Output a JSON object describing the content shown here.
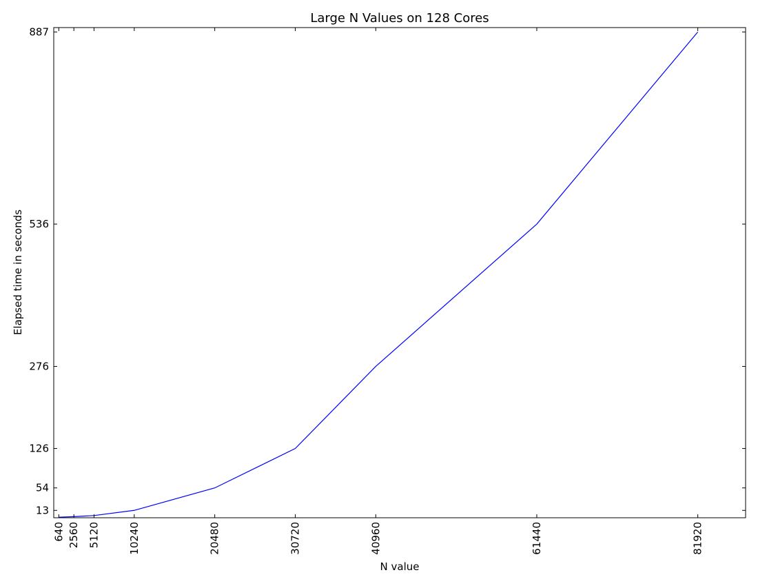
{
  "chart_data": {
    "type": "line",
    "title": "Large N Values on 128 Cores",
    "xlabel": "N value",
    "ylabel": "Elapsed time in seconds",
    "xlim": [
      0,
      88000
    ],
    "ylim": [
      -0.5,
      895
    ],
    "xticks": [
      640,
      2560,
      5120,
      10240,
      20480,
      30720,
      40960,
      61440,
      81920
    ],
    "yticks": [
      13,
      54,
      126,
      276,
      536,
      887
    ],
    "grid": false,
    "series": [
      {
        "color": "#0000ff",
        "x": [
          640,
          2560,
          5120,
          10240,
          20480,
          30720,
          40960,
          61440,
          81920
        ],
        "y": [
          0.5,
          1.5,
          3.5,
          13,
          54,
          126,
          276,
          536,
          887
        ]
      }
    ]
  }
}
